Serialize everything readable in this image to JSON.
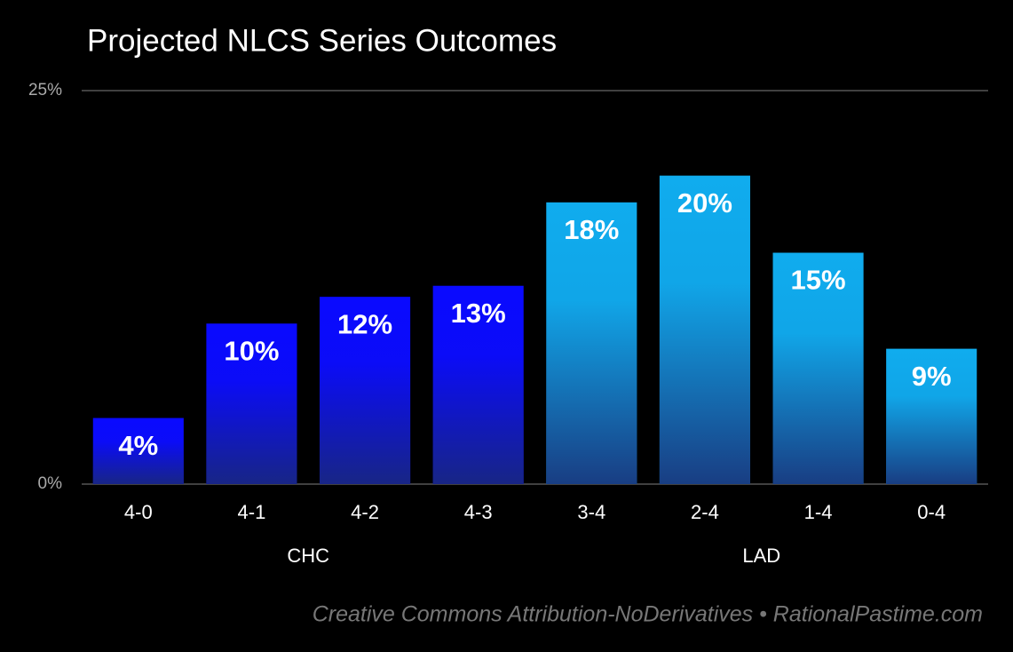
{
  "chart_data": {
    "type": "bar",
    "title": "Projected NLCS Series Outcomes",
    "categories": [
      "4-0",
      "4-1",
      "4-2",
      "4-3",
      "3-4",
      "2-4",
      "1-4",
      "0-4"
    ],
    "series": [
      {
        "name": "CHC",
        "color": "#0a0aff",
        "values": [
          4.2,
          10.2,
          11.9,
          12.6,
          null,
          null,
          null,
          null
        ],
        "value_labels": [
          "4%",
          "10%",
          "12%",
          "13%",
          null,
          null,
          null,
          null
        ]
      },
      {
        "name": "LAD",
        "color": "#10acee",
        "values": [
          null,
          null,
          null,
          null,
          17.9,
          19.6,
          14.7,
          8.6
        ],
        "value_labels": [
          null,
          null,
          null,
          null,
          "18%",
          "20%",
          "15%",
          "9%"
        ]
      }
    ],
    "ylim": [
      0,
      25
    ],
    "yticks": [
      {
        "value": 0,
        "label": "0%"
      },
      {
        "value": 25,
        "label": "25%"
      }
    ],
    "grid": true,
    "footer": "Creative Commons Attribution-NoDerivatives • RationalPastime.com"
  }
}
